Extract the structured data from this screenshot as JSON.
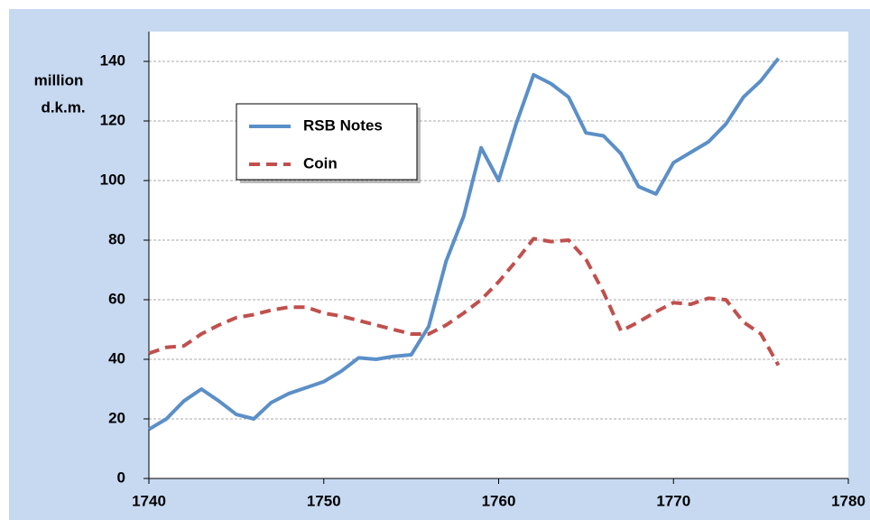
{
  "chart_data": {
    "type": "line",
    "y_label": [
      "million",
      "d.k.m."
    ],
    "x": [
      1740,
      1741,
      1742,
      1743,
      1744,
      1745,
      1746,
      1747,
      1748,
      1749,
      1750,
      1751,
      1752,
      1753,
      1754,
      1755,
      1756,
      1757,
      1758,
      1759,
      1760,
      1761,
      1762,
      1763,
      1764,
      1765,
      1766,
      1767,
      1768,
      1769,
      1770,
      1771,
      1772,
      1773,
      1774,
      1775,
      1776
    ],
    "series": [
      {
        "name": "RSB Notes",
        "color": "#5b8fc7",
        "dash": false,
        "values": [
          16.5,
          20,
          26,
          30,
          26,
          21.5,
          20,
          25.5,
          28.5,
          30.5,
          32.5,
          36,
          40.5,
          40,
          41,
          41.5,
          51,
          73,
          88,
          111,
          100,
          119,
          135.5,
          132.5,
          128,
          116,
          115,
          109,
          98,
          95.5,
          106,
          109.5,
          113,
          119,
          128,
          133.5,
          141
        ]
      },
      {
        "name": "Coin",
        "color": "#c0504d",
        "dash": true,
        "values": [
          42,
          44,
          44.5,
          48.5,
          51.5,
          54,
          55,
          56.5,
          57.5,
          57.5,
          55.5,
          54.5,
          53,
          51.5,
          50,
          48.5,
          48.5,
          51.5,
          55.5,
          60,
          66,
          73,
          80.5,
          79.5,
          80,
          73.5,
          62.5,
          49.5,
          52.5,
          56,
          59,
          58.5,
          60.5,
          60,
          52.5,
          48.5,
          38
        ]
      }
    ],
    "xlim": [
      1740,
      1780
    ],
    "xticks": [
      1740,
      1750,
      1760,
      1770,
      1780
    ],
    "ylim": [
      0,
      150
    ],
    "yticks": [
      0,
      20,
      40,
      60,
      80,
      100,
      120,
      140
    ],
    "grid": true
  }
}
